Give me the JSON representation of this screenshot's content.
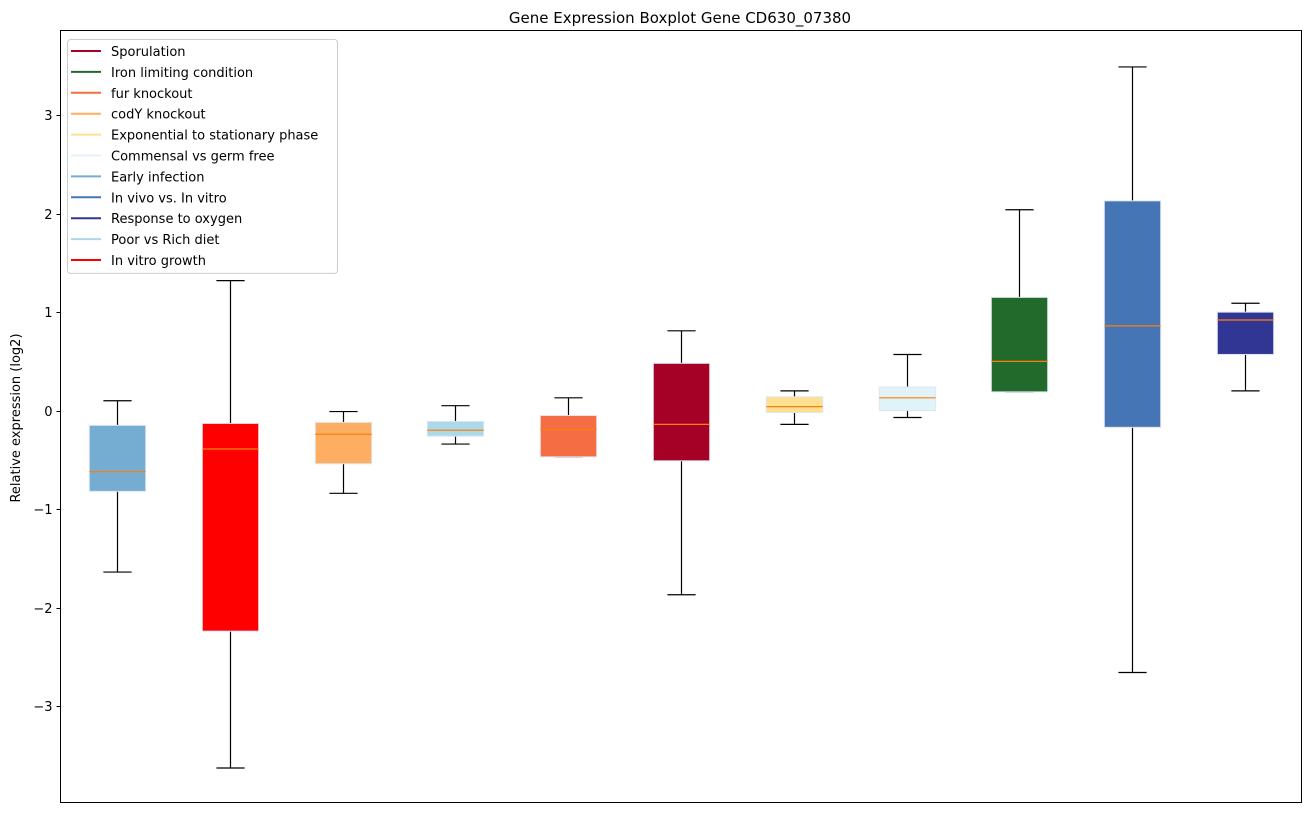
{
  "chart_data": {
    "type": "boxplot",
    "title": "Gene Expression Boxplot Gene CD630_07380",
    "xlabel": "",
    "ylabel": "Relative expression (log2)",
    "ylim": [
      -3.98,
      3.86
    ],
    "xlim": [
      0.5,
      11.5
    ],
    "yticks": [
      3,
      2,
      1,
      0,
      -1,
      -2,
      -3
    ],
    "ytick_labels": [
      "3",
      "2",
      "1",
      "0",
      "−1",
      "−2",
      "−3"
    ],
    "grid": false,
    "legend_position": "top-left",
    "median_color": "#ff7f0e",
    "boxes": [
      {
        "name": "Early infection",
        "color": "#74add1",
        "whislo": -1.64,
        "q1": -0.82,
        "med": -0.62,
        "q3": -0.15,
        "whishi": 0.1
      },
      {
        "name": "In vitro growth",
        "color": "#ff0000",
        "whislo": -3.63,
        "q1": -2.24,
        "med": -0.39,
        "q3": -0.13,
        "whishi": 1.32
      },
      {
        "name": "codY knockout",
        "color": "#fdae61",
        "whislo": -0.84,
        "q1": -0.54,
        "med": -0.24,
        "q3": -0.12,
        "whishi": -0.01
      },
      {
        "name": "Poor vs Rich diet",
        "color": "#abd9e9",
        "whislo": -0.34,
        "q1": -0.26,
        "med": -0.2,
        "q3": -0.11,
        "whishi": 0.05
      },
      {
        "name": "fur knockout",
        "color": "#f46d43",
        "whislo": -0.47,
        "q1": -0.47,
        "med": -0.19,
        "q3": -0.05,
        "whishi": 0.13
      },
      {
        "name": "Sporulation",
        "color": "#a50026",
        "whislo": -1.87,
        "q1": -0.51,
        "med": -0.14,
        "q3": 0.48,
        "whishi": 0.81
      },
      {
        "name": "Exponential to stationary phase",
        "color": "#fee090",
        "whislo": -0.14,
        "q1": -0.02,
        "med": 0.04,
        "q3": 0.14,
        "whishi": 0.2
      },
      {
        "name": "Commensal vs germ free",
        "color": "#e0f3f8",
        "whislo": -0.07,
        "q1": 0.0,
        "med": 0.13,
        "q3": 0.24,
        "whishi": 0.57
      },
      {
        "name": "Iron limiting condition",
        "color": "#226a2c",
        "whislo": 0.19,
        "q1": 0.19,
        "med": 0.5,
        "q3": 1.15,
        "whishi": 2.04
      },
      {
        "name": "In vivo vs. In vitro",
        "color": "#4575b4",
        "whislo": -2.66,
        "q1": -0.17,
        "med": 0.86,
        "q3": 2.13,
        "whishi": 3.49
      },
      {
        "name": "Response to oxygen",
        "color": "#313695",
        "whislo": 0.2,
        "q1": 0.57,
        "med": 0.92,
        "q3": 1.0,
        "whishi": 1.09
      }
    ],
    "legend": [
      {
        "label": "Sporulation",
        "color": "#a50026"
      },
      {
        "label": "Iron limiting condition",
        "color": "#226a2c"
      },
      {
        "label": "fur knockout",
        "color": "#f46d43"
      },
      {
        "label": "codY knockout",
        "color": "#fdae61"
      },
      {
        "label": "Exponential to stationary phase",
        "color": "#fee090"
      },
      {
        "label": "Commensal vs germ free",
        "color": "#e0f3f8"
      },
      {
        "label": "Early infection",
        "color": "#74add1"
      },
      {
        "label": "In vivo vs. In vitro",
        "color": "#4575b4"
      },
      {
        "label": "Response to oxygen",
        "color": "#313695"
      },
      {
        "label": "Poor vs Rich diet",
        "color": "#abd9e9"
      },
      {
        "label": "In vitro growth",
        "color": "#ff0000"
      }
    ]
  }
}
